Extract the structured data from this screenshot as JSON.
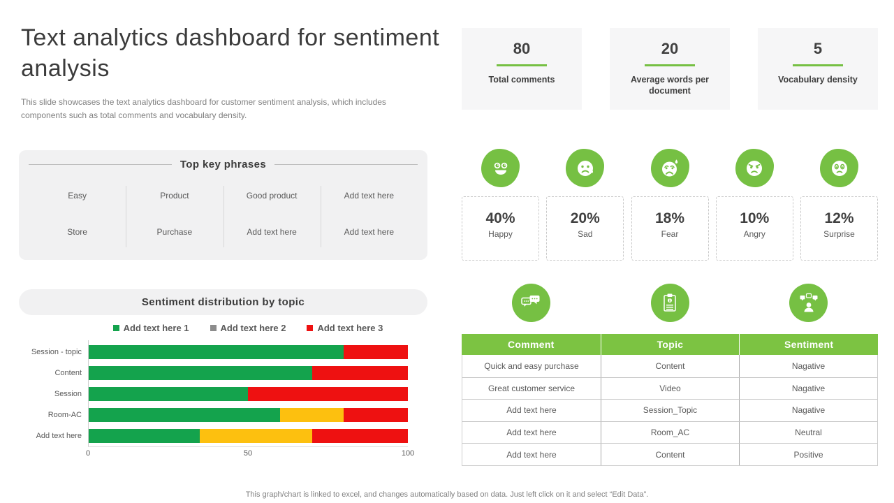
{
  "slide": {
    "title": "Text analytics dashboard for sentiment analysis",
    "subtitle": "This slide showcases the text analytics dashboard for customer sentiment analysis, which includes components such as total comments and vocabulary density.",
    "footer_note": "This graph/chart is linked to excel, and changes automatically based on data. Just left click on it and select “Edit Data”."
  },
  "kpi_cards": [
    {
      "value": "80",
      "label": "Total comments"
    },
    {
      "value": "20",
      "label": "Average words per document"
    },
    {
      "value": "5",
      "label": "Vocabulary density"
    }
  ],
  "key_phrases": {
    "title": "Top key phrases",
    "row1": [
      "Easy",
      "Product",
      "Good product",
      "Add text here"
    ],
    "row2": [
      "Store",
      "Purchase",
      "Add text here",
      "Add text here"
    ]
  },
  "emotions": [
    {
      "icon": "happy-emoji-icon",
      "percent": "40%",
      "label": "Happy"
    },
    {
      "icon": "sad-emoji-icon",
      "percent": "20%",
      "label": "Sad"
    },
    {
      "icon": "fear-emoji-icon",
      "percent": "18%",
      "label": "Fear"
    },
    {
      "icon": "angry-emoji-icon",
      "percent": "10%",
      "label": "Angry"
    },
    {
      "icon": "surprise-emoji-icon",
      "percent": "12%",
      "label": "Surprise"
    }
  ],
  "chart_data": {
    "type": "bar",
    "orientation": "horizontal",
    "stacked": true,
    "title": "Sentiment distribution by topic",
    "categories": [
      "Session - topic",
      "Content",
      "Session",
      "Room-AC",
      "Add text here"
    ],
    "series": [
      {
        "name": "Add text here 1",
        "color": "#14a34d",
        "legend_color": "#14a34d",
        "values": [
          80,
          70,
          50,
          60,
          35
        ]
      },
      {
        "name": "Add text here 2",
        "color": "#fdc00f",
        "legend_color": "#8c8c8c",
        "values": [
          0,
          0,
          0,
          20,
          35
        ]
      },
      {
        "name": "Add text here 3",
        "color": "#ee1111",
        "legend_color": "#ee1111",
        "values": [
          20,
          30,
          50,
          20,
          30
        ]
      }
    ],
    "xlim": [
      0,
      100
    ],
    "xticks": [
      "0",
      "50",
      "100"
    ],
    "legend_position": "top",
    "grid": false
  },
  "sentiment_table": {
    "column_icons": [
      "comment-bubbles-icon",
      "topic-clipboard-icon",
      "sentiment-person-icon"
    ],
    "headers": [
      "Comment",
      "Topic",
      "Sentiment"
    ],
    "rows": [
      [
        "Quick and easy purchase",
        "Content",
        "Nagative"
      ],
      [
        "Great customer service",
        "Video",
        "Nagative"
      ],
      [
        "Add text here",
        "Session_Topic",
        "Nagative"
      ],
      [
        "Add text here",
        "Room_AC",
        "Neutral"
      ],
      [
        "Add text here",
        "Content",
        "Positive"
      ]
    ]
  },
  "colors": {
    "accent_green": "#76c043",
    "table_header_green": "#7cc342",
    "chart_green": "#14a34d",
    "chart_yellow": "#fdc00f",
    "chart_red": "#ee1111",
    "legend_gray": "#8c8c8c",
    "panel_gray": "#f1f1f2"
  }
}
